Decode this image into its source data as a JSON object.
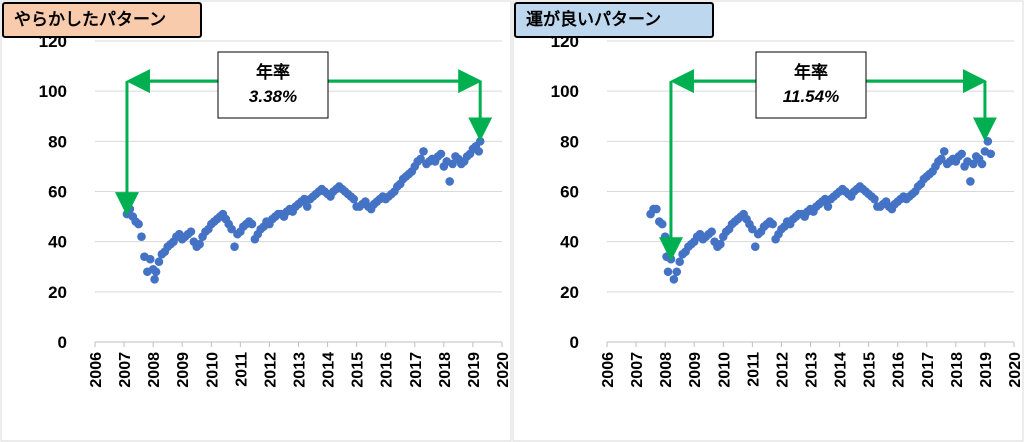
{
  "chart_data": [
    {
      "type": "scatter",
      "title": "やらかしたパターン",
      "title_bg": "#f8cbad",
      "marker_color": "#4472c4",
      "arrow_color": "#00b050",
      "xlim": [
        2006,
        2020
      ],
      "ylim": [
        0,
        120
      ],
      "xticks": [
        "2006",
        "2007",
        "2008",
        "2009",
        "2010",
        "2011",
        "2012",
        "2013",
        "2014",
        "2015",
        "2016",
        "2017",
        "2018",
        "2019",
        "2020"
      ],
      "yticks": [
        "0",
        "20",
        "40",
        "60",
        "80",
        "100",
        "120"
      ],
      "grid": "horizontal",
      "annotation": {
        "label": "年率",
        "value": "3.38%",
        "from": [
          2007.1,
          51
        ],
        "to": [
          2019.25,
          80
        ],
        "level": 104
      },
      "x": [
        2007.1,
        2007.2,
        2007.3,
        2007.4,
        2007.5,
        2007.6,
        2007.7,
        2007.8,
        2007.9,
        2008.0,
        2008.05,
        2008.1,
        2008.2,
        2008.3,
        2008.4,
        2008.5,
        2008.6,
        2008.7,
        2008.8,
        2008.9,
        2009.0,
        2009.1,
        2009.2,
        2009.3,
        2009.4,
        2009.5,
        2009.6,
        2009.7,
        2009.8,
        2009.9,
        2010.0,
        2010.1,
        2010.2,
        2010.3,
        2010.4,
        2010.5,
        2010.6,
        2010.7,
        2010.8,
        2010.9,
        2011.0,
        2011.1,
        2011.2,
        2011.3,
        2011.4,
        2011.5,
        2011.6,
        2011.7,
        2011.8,
        2011.9,
        2012.0,
        2012.1,
        2012.2,
        2012.3,
        2012.4,
        2012.5,
        2012.6,
        2012.7,
        2012.8,
        2012.9,
        2013.0,
        2013.1,
        2013.2,
        2013.3,
        2013.4,
        2013.5,
        2013.6,
        2013.7,
        2013.8,
        2013.9,
        2014.0,
        2014.1,
        2014.2,
        2014.3,
        2014.4,
        2014.5,
        2014.6,
        2014.7,
        2014.8,
        2014.9,
        2015.0,
        2015.1,
        2015.2,
        2015.3,
        2015.4,
        2015.5,
        2015.6,
        2015.7,
        2015.8,
        2015.9,
        2016.0,
        2016.1,
        2016.2,
        2016.3,
        2016.4,
        2016.5,
        2016.6,
        2016.7,
        2016.8,
        2016.9,
        2017.0,
        2017.1,
        2017.2,
        2017.3,
        2017.4,
        2017.5,
        2017.6,
        2017.7,
        2017.8,
        2017.9,
        2018.0,
        2018.1,
        2018.2,
        2018.3,
        2018.4,
        2018.5,
        2018.6,
        2018.7,
        2018.8,
        2018.9,
        2019.0,
        2019.1,
        2019.2,
        2019.25
      ],
      "y": [
        51,
        53,
        50,
        48,
        47,
        42,
        34,
        28,
        33,
        29,
        25,
        28,
        32,
        35,
        36,
        38,
        39,
        40,
        42,
        43,
        41,
        42,
        43,
        44,
        40,
        38,
        39,
        42,
        44,
        45,
        47,
        48,
        49,
        50,
        51,
        49,
        47,
        45,
        38,
        43,
        44,
        46,
        47,
        48,
        47,
        41,
        43,
        45,
        46,
        48,
        47,
        49,
        50,
        51,
        51,
        50,
        52,
        53,
        52,
        54,
        55,
        56,
        57,
        54,
        57,
        58,
        59,
        60,
        61,
        60,
        59,
        58,
        60,
        61,
        62,
        61,
        60,
        59,
        58,
        57,
        54,
        54,
        55,
        56,
        54,
        53,
        55,
        56,
        57,
        58,
        57,
        58,
        59,
        60,
        62,
        63,
        65,
        66,
        67,
        68,
        70,
        72,
        73,
        76,
        71,
        72,
        73,
        72,
        74,
        75,
        70,
        72,
        64,
        71,
        74,
        73,
        71,
        72,
        74,
        75,
        77,
        78,
        76,
        80
      ]
    },
    {
      "type": "scatter",
      "title": "運が良いパターン",
      "title_bg": "#bdd7ee",
      "marker_color": "#4472c4",
      "arrow_color": "#00b050",
      "xlim": [
        2006,
        2020
      ],
      "ylim": [
        0,
        120
      ],
      "xticks": [
        "2006",
        "2007",
        "2008",
        "2009",
        "2010",
        "2011",
        "2012",
        "2013",
        "2014",
        "2015",
        "2016",
        "2017",
        "2018",
        "2019",
        "2020"
      ],
      "yticks": [
        "0",
        "20",
        "40",
        "60",
        "80",
        "100",
        "120"
      ],
      "grid": "horizontal",
      "annotation": {
        "label": "年率",
        "value": "11.54%",
        "from": [
          2008.2,
          33
        ],
        "to": [
          2019.0,
          80
        ],
        "level": 104
      },
      "x": [
        2007.5,
        2007.6,
        2007.7,
        2007.8,
        2007.9,
        2008.0,
        2008.05,
        2008.1,
        2008.2,
        2008.3,
        2008.4,
        2008.5,
        2008.6,
        2008.7,
        2008.8,
        2008.9,
        2009.0,
        2009.1,
        2009.2,
        2009.3,
        2009.4,
        2009.5,
        2009.6,
        2009.7,
        2009.8,
        2009.9,
        2010.0,
        2010.1,
        2010.2,
        2010.3,
        2010.4,
        2010.5,
        2010.6,
        2010.7,
        2010.8,
        2010.9,
        2011.0,
        2011.1,
        2011.2,
        2011.3,
        2011.4,
        2011.5,
        2011.6,
        2011.7,
        2011.8,
        2011.9,
        2012.0,
        2012.1,
        2012.2,
        2012.3,
        2012.4,
        2012.5,
        2012.6,
        2012.7,
        2012.8,
        2012.9,
        2013.0,
        2013.1,
        2013.2,
        2013.3,
        2013.4,
        2013.5,
        2013.6,
        2013.7,
        2013.8,
        2013.9,
        2014.0,
        2014.1,
        2014.2,
        2014.3,
        2014.4,
        2014.5,
        2014.6,
        2014.7,
        2014.8,
        2014.9,
        2015.0,
        2015.1,
        2015.2,
        2015.3,
        2015.4,
        2015.5,
        2015.6,
        2015.7,
        2015.8,
        2015.9,
        2016.0,
        2016.1,
        2016.2,
        2016.3,
        2016.4,
        2016.5,
        2016.6,
        2016.7,
        2016.8,
        2016.9,
        2017.0,
        2017.1,
        2017.2,
        2017.3,
        2017.4,
        2017.5,
        2017.6,
        2017.7,
        2017.8,
        2017.9,
        2018.0,
        2018.1,
        2018.2,
        2018.3,
        2018.4,
        2018.5,
        2018.6,
        2018.7,
        2018.8,
        2018.9,
        2019.0,
        2019.1,
        2019.2
      ],
      "y": [
        51,
        53,
        53,
        48,
        47,
        42,
        34,
        28,
        33,
        25,
        28,
        32,
        35,
        36,
        38,
        39,
        40,
        42,
        43,
        41,
        42,
        43,
        44,
        40,
        38,
        39,
        42,
        44,
        45,
        47,
        48,
        49,
        50,
        51,
        49,
        47,
        45,
        38,
        43,
        44,
        46,
        47,
        48,
        47,
        41,
        43,
        45,
        46,
        48,
        47,
        49,
        50,
        51,
        51,
        50,
        52,
        53,
        52,
        54,
        55,
        56,
        57,
        54,
        57,
        58,
        59,
        60,
        61,
        60,
        59,
        58,
        60,
        61,
        62,
        61,
        60,
        59,
        58,
        57,
        54,
        54,
        55,
        56,
        54,
        53,
        55,
        56,
        57,
        58,
        57,
        58,
        59,
        60,
        62,
        63,
        65,
        66,
        67,
        68,
        70,
        72,
        73,
        76,
        71,
        72,
        73,
        72,
        74,
        75,
        70,
        72,
        64,
        71,
        74,
        73,
        71,
        76,
        80,
        75
      ]
    }
  ]
}
